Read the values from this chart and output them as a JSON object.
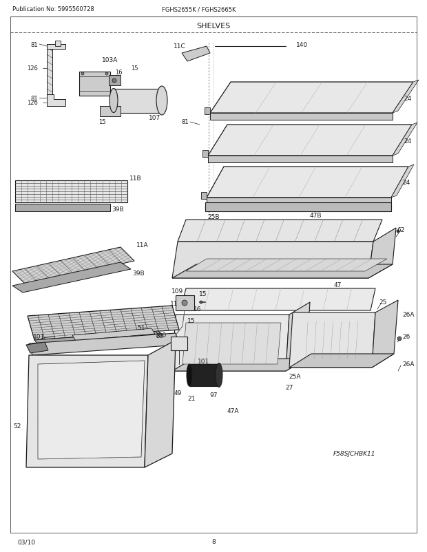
{
  "title": "SHELVES",
  "pub_no": "Publication No: 5995560728",
  "model": "FGHS2655K / FGHS2665K",
  "date": "03/10",
  "page": "8",
  "diagram_id": "F58SJCHBK11",
  "bg_color": "#ffffff",
  "line_color": "#1a1a1a",
  "text_color": "#1a1a1a",
  "fig_width": 6.2,
  "fig_height": 8.03,
  "dpi": 100
}
